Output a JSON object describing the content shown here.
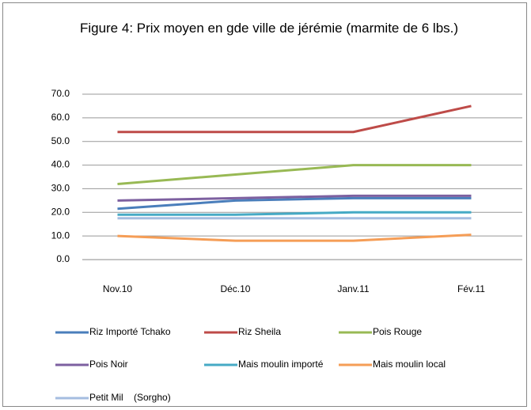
{
  "chart_data": {
    "type": "line",
    "title": "Figure 4: Prix moyen en gde ville de jérémie (marmite de 6 lbs.)",
    "categories": [
      "Nov.10",
      "Déc.10",
      "Janv.11",
      "Fév.11"
    ],
    "series": [
      {
        "name": "Riz Importé Tchako",
        "color": "#4a7ebb",
        "values": [
          21.5,
          25,
          26,
          26
        ]
      },
      {
        "name": "Riz Sheila",
        "color": "#be4b48",
        "values": [
          54,
          54,
          54,
          65
        ]
      },
      {
        "name": "Pois Rouge",
        "color": "#98b954",
        "values": [
          32,
          36,
          40,
          40
        ]
      },
      {
        "name": "Pois Noir",
        "color": "#7d60a0",
        "values": [
          25,
          26,
          27,
          27
        ]
      },
      {
        "name": "Mais moulin importé",
        "color": "#46aac5",
        "values": [
          19,
          19,
          20,
          20
        ]
      },
      {
        "name": "Mais moulin local",
        "color": "#f59d56",
        "values": [
          10,
          8,
          8,
          10.5
        ]
      },
      {
        "name": "Petit Mil    (Sorgho)",
        "color": "#a5bde0",
        "values": [
          17.5,
          17.5,
          17.5,
          17.5
        ]
      }
    ],
    "ylim": [
      0,
      70
    ],
    "yticks": [
      {
        "value": 0,
        "label": "0.0"
      },
      {
        "value": 10,
        "label": "10.0"
      },
      {
        "value": 20,
        "label": "20.0"
      },
      {
        "value": 30,
        "label": "30.0"
      },
      {
        "value": 40,
        "label": "40.0"
      },
      {
        "value": 50,
        "label": "50.0"
      },
      {
        "value": 60,
        "label": "60.0"
      },
      {
        "value": 70,
        "label": "70.0"
      }
    ],
    "grid": true,
    "legend": "bottom"
  }
}
